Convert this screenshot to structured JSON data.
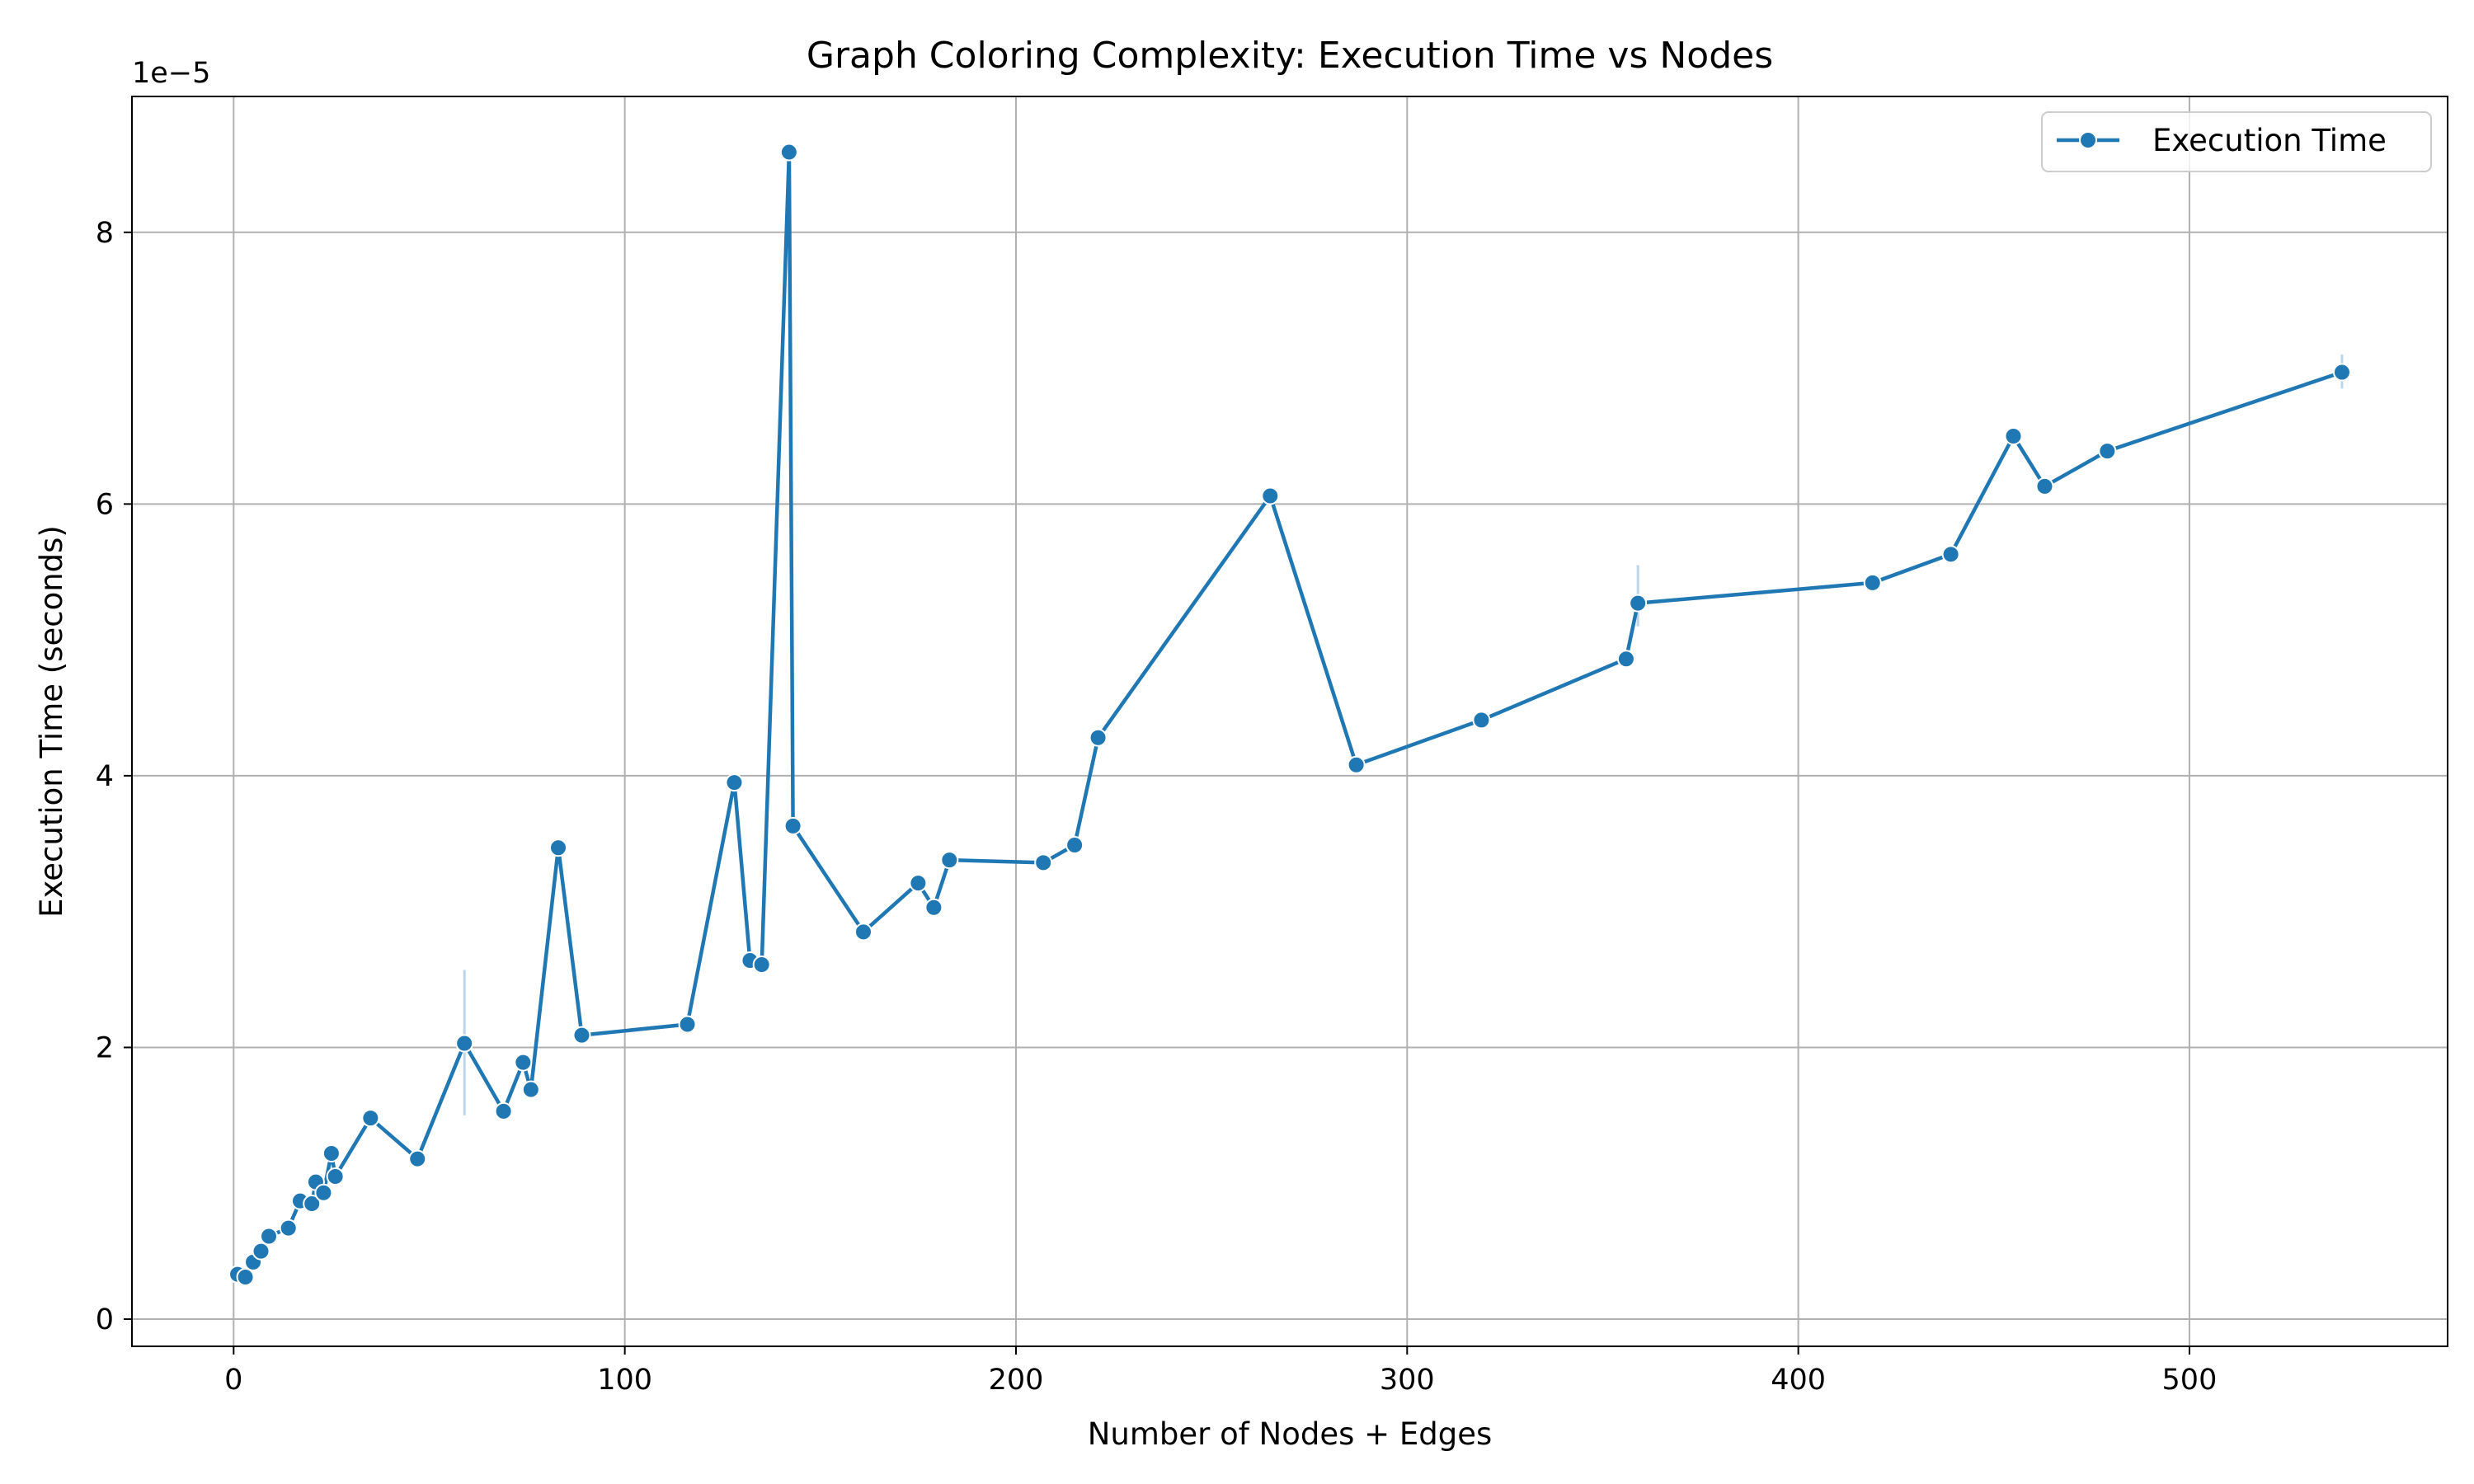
{
  "chart_data": {
    "type": "line",
    "title": "Graph Coloring Complexity: Execution Time vs Nodes",
    "xlabel": "Number of Nodes + Edges",
    "ylabel": "Execution Time (seconds)",
    "y_offset_label": "1e−5",
    "xlim": [
      -26,
      566
    ],
    "ylim": [
      -0.2,
      9.0
    ],
    "xticks": [
      0,
      100,
      200,
      300,
      400,
      500
    ],
    "xtick_labels": [
      "0",
      "100",
      "200",
      "300",
      "400",
      "500"
    ],
    "yticks": [
      0,
      2,
      4,
      6,
      8
    ],
    "ytick_labels": [
      "0",
      "2",
      "4",
      "6",
      "8"
    ],
    "grid": true,
    "legend_position": "top-right",
    "series": [
      {
        "name": "Execution Time",
        "color": "#1f77b4",
        "x": [
          1,
          3,
          5,
          7,
          9,
          14,
          17,
          20,
          21,
          23,
          25,
          26,
          35,
          47,
          59,
          69,
          74,
          76,
          83,
          89,
          116,
          128,
          132,
          135,
          142,
          143,
          161,
          175,
          179,
          183,
          207,
          215,
          221,
          265,
          287,
          319,
          356,
          359,
          419,
          439,
          455,
          463,
          479,
          539
        ],
        "y": [
          0.33,
          0.31,
          0.42,
          0.5,
          0.61,
          0.67,
          0.87,
          0.85,
          1.01,
          0.93,
          1.22,
          1.05,
          1.48,
          1.18,
          2.03,
          1.53,
          1.89,
          1.69,
          3.47,
          2.09,
          2.17,
          3.95,
          2.64,
          2.61,
          8.59,
          3.63,
          2.85,
          3.21,
          3.03,
          3.38,
          3.36,
          3.49,
          4.28,
          6.06,
          4.08,
          4.41,
          4.86,
          5.27,
          5.42,
          5.63,
          6.5,
          6.13,
          6.39,
          6.97
        ]
      }
    ],
    "error_bars": [
      {
        "x": 59,
        "low": 1.5,
        "high": 2.57
      },
      {
        "x": 359,
        "low": 5.1,
        "high": 5.55
      },
      {
        "x": 539,
        "low": 6.85,
        "high": 7.1
      }
    ]
  }
}
